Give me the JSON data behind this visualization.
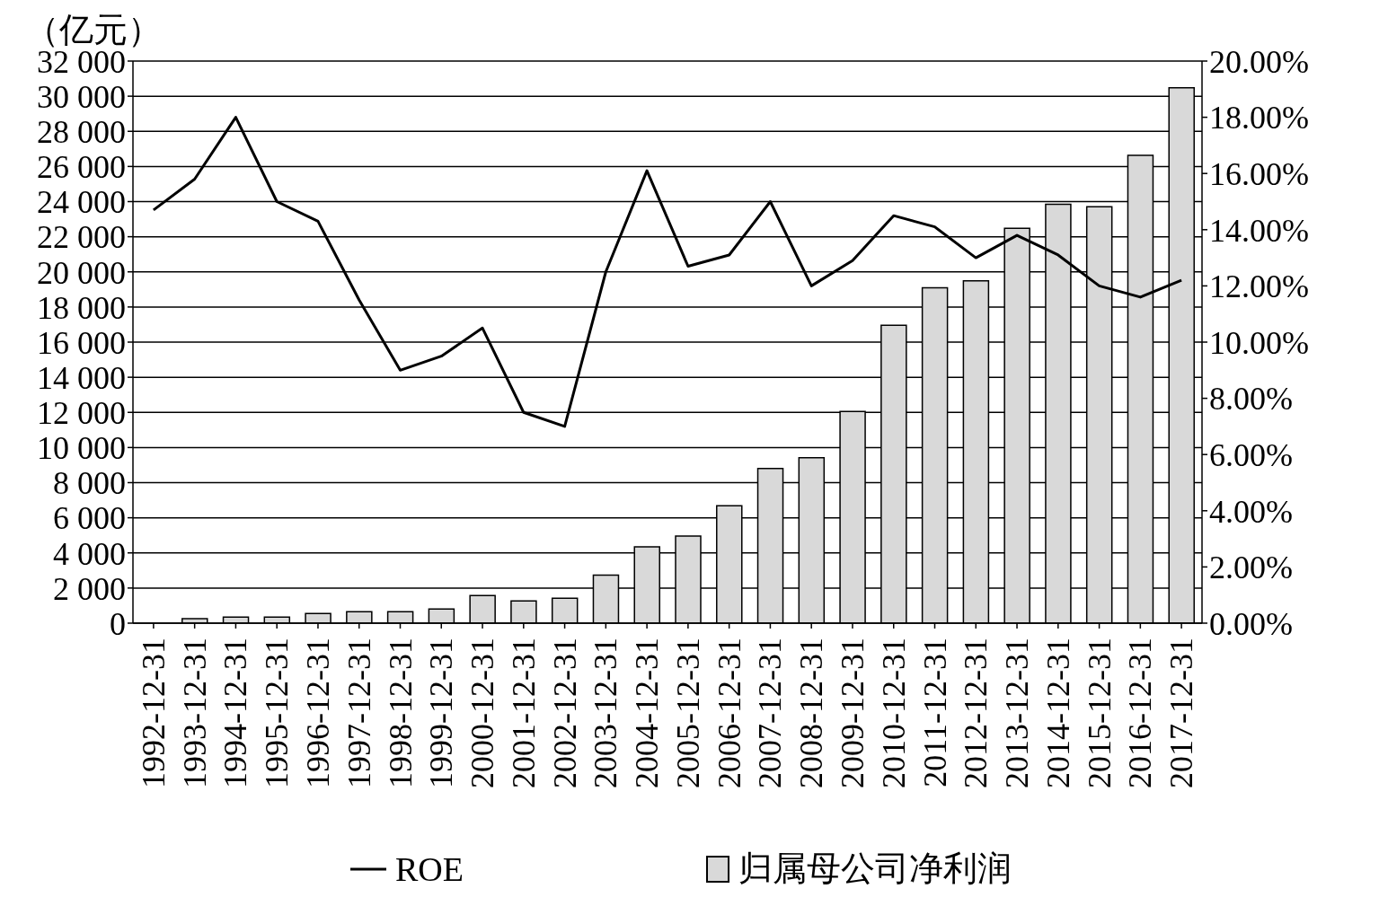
{
  "chart_data": {
    "type": "bar",
    "ylabel": "（亿元）",
    "categories": [
      "1992-12-31",
      "1993-12-31",
      "1994-12-31",
      "1995-12-31",
      "1996-12-31",
      "1997-12-31",
      "1998-12-31",
      "1999-12-31",
      "2000-12-31",
      "2001-12-31",
      "2002-12-31",
      "2003-12-31",
      "2004-12-31",
      "2005-12-31",
      "2006-12-31",
      "2007-12-31",
      "2008-12-31",
      "2009-12-31",
      "2010-12-31",
      "2011-12-31",
      "2012-12-31",
      "2013-12-31",
      "2014-12-31",
      "2015-12-31",
      "2016-12-31",
      "2017-12-31"
    ],
    "series": [
      {
        "name": "ROE",
        "type": "line",
        "axis": "y2",
        "color": "#000000",
        "values": [
          14.7,
          15.8,
          18.0,
          15.0,
          14.3,
          11.5,
          9.0,
          9.5,
          10.5,
          7.5,
          7.0,
          12.5,
          16.1,
          12.7,
          13.1,
          15.0,
          12.0,
          12.9,
          14.5,
          14.1,
          13.0,
          13.8,
          13.1,
          12.0,
          11.6,
          12.2
        ]
      },
      {
        "name": "归属母公司净利润",
        "color": "#d9d9d9",
        "values": [
          null,
          250,
          350,
          350,
          550,
          650,
          650,
          800,
          1570,
          1260,
          1420,
          2730,
          4350,
          4960,
          6680,
          8810,
          9420,
          12050,
          16960,
          19090,
          19490,
          22480,
          23850,
          23700,
          26630,
          30480
        ]
      }
    ],
    "ylim": [
      0,
      32000
    ],
    "yticks": [
      0,
      {
        "value": 2000,
        "label": "2 000"
      },
      {
        "value": 4000,
        "label": "4 000"
      },
      {
        "value": 6000,
        "label": "6 000"
      },
      {
        "value": 8000,
        "label": "8 000"
      },
      {
        "value": 10000,
        "label": "10 000"
      },
      {
        "value": 12000,
        "label": "12 000"
      },
      {
        "value": 14000,
        "label": "14 000"
      },
      {
        "value": 16000,
        "label": "16 000"
      },
      {
        "value": 18000,
        "label": "18 000"
      },
      {
        "value": 20000,
        "label": "20 000"
      },
      {
        "value": 22000,
        "label": "22 000"
      },
      {
        "value": 24000,
        "label": "24 000"
      },
      {
        "value": 26000,
        "label": "26 000"
      },
      {
        "value": 28000,
        "label": "28 000"
      },
      {
        "value": 30000,
        "label": "30 000"
      },
      {
        "value": 32000,
        "label": "32 000"
      }
    ],
    "y2lim": [
      0,
      20
    ],
    "y2ticks": [
      {
        "value": 0,
        "label": "0.00%"
      },
      {
        "value": 2,
        "label": "2.00%"
      },
      {
        "value": 4,
        "label": "4.00%"
      },
      {
        "value": 6,
        "label": "6.00%"
      },
      {
        "value": 8,
        "label": "8.00%"
      },
      {
        "value": 10,
        "label": "10.00%"
      },
      {
        "value": 12,
        "label": "12.00%"
      },
      {
        "value": 14,
        "label": "14.00%"
      },
      {
        "value": 16,
        "label": "16.00%"
      },
      {
        "value": 18,
        "label": "18.00%"
      },
      {
        "value": 20,
        "label": "20.00%"
      }
    ],
    "grid": "y",
    "legend": "bottom",
    "marker": "none",
    "line_style": "solid"
  }
}
